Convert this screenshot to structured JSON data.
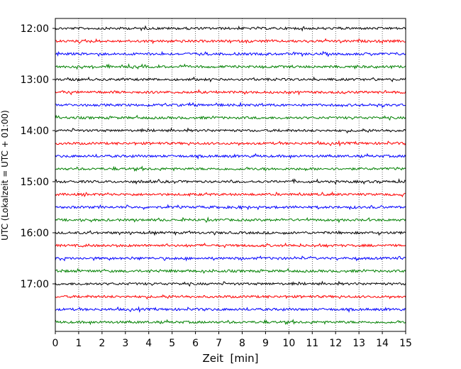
{
  "chart_data": {
    "type": "line",
    "title": "",
    "xlabel": "Zeit  [min]",
    "ylabel": "UTC (Lokalzeit = UTC + 01:00)",
    "xlim": [
      0,
      15
    ],
    "x_ticks": [
      0,
      1,
      2,
      3,
      4,
      5,
      6,
      7,
      8,
      9,
      10,
      11,
      12,
      13,
      14,
      15
    ],
    "x_tick_labels": [
      "0",
      "1",
      "2",
      "3",
      "4",
      "5",
      "6",
      "7",
      "8",
      "9",
      "10",
      "11",
      "12",
      "13",
      "14",
      "15"
    ],
    "y_tick_labels": [
      "12:00",
      "13:00",
      "14:00",
      "15:00",
      "16:00",
      "17:00"
    ],
    "grid": "vertical dotted lines at each minute",
    "trace_colors": [
      "#000000",
      "#ff0000",
      "#0000ff",
      "#008000"
    ],
    "series": [
      {
        "start": "12:00",
        "color": "#000000"
      },
      {
        "start": "12:15",
        "color": "#ff0000"
      },
      {
        "start": "12:30",
        "color": "#0000ff"
      },
      {
        "start": "12:45",
        "color": "#008000"
      },
      {
        "start": "13:00",
        "color": "#000000"
      },
      {
        "start": "13:15",
        "color": "#ff0000"
      },
      {
        "start": "13:30",
        "color": "#0000ff"
      },
      {
        "start": "13:45",
        "color": "#008000"
      },
      {
        "start": "14:00",
        "color": "#000000"
      },
      {
        "start": "14:15",
        "color": "#ff0000"
      },
      {
        "start": "14:30",
        "color": "#0000ff"
      },
      {
        "start": "14:45",
        "color": "#008000"
      },
      {
        "start": "15:00",
        "color": "#000000"
      },
      {
        "start": "15:15",
        "color": "#ff0000"
      },
      {
        "start": "15:30",
        "color": "#0000ff"
      },
      {
        "start": "15:45",
        "color": "#008000"
      },
      {
        "start": "16:00",
        "color": "#000000"
      },
      {
        "start": "16:15",
        "color": "#ff0000"
      },
      {
        "start": "16:30",
        "color": "#0000ff"
      },
      {
        "start": "16:45",
        "color": "#008000"
      },
      {
        "start": "17:00",
        "color": "#000000"
      },
      {
        "start": "17:15",
        "color": "#ff0000"
      },
      {
        "start": "17:30",
        "color": "#0000ff"
      },
      {
        "start": "17:45",
        "color": "#008000"
      }
    ]
  }
}
